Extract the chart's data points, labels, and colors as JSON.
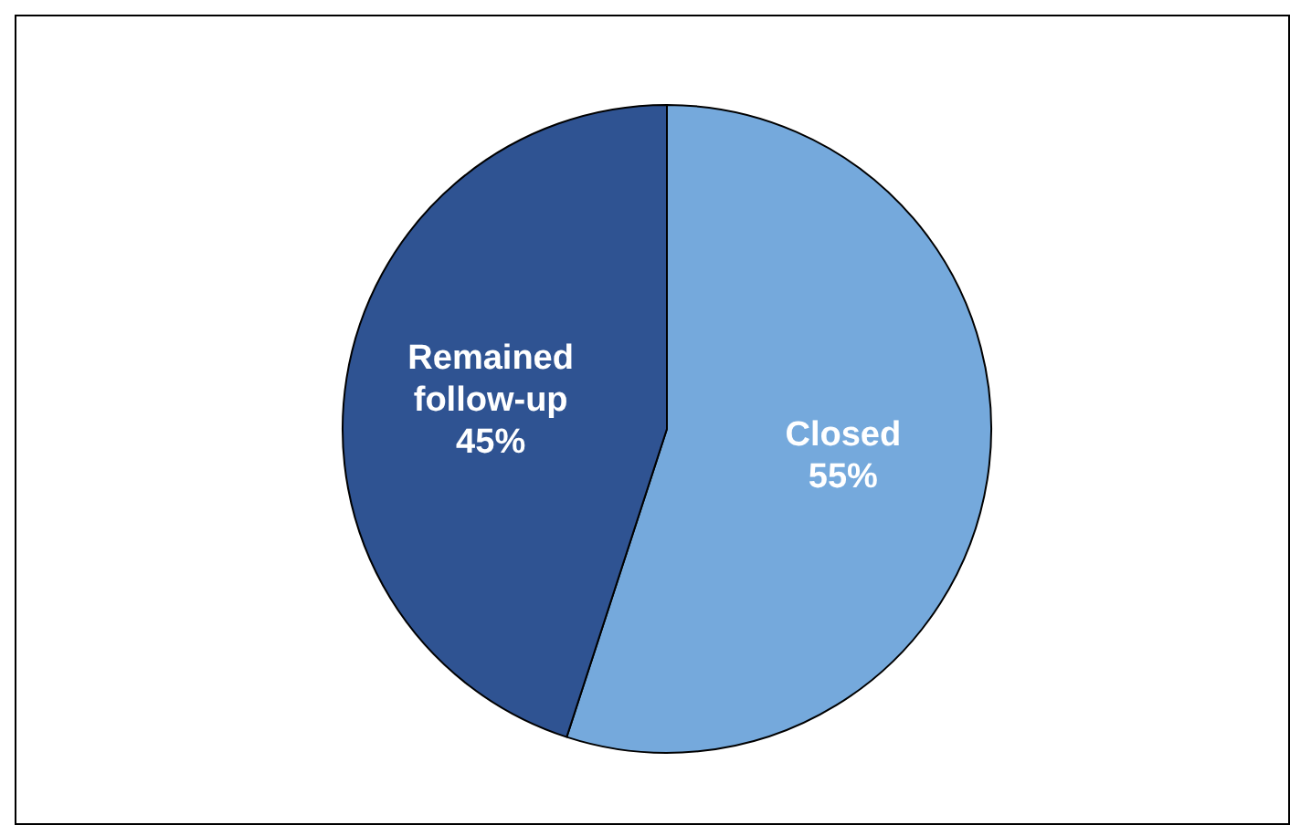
{
  "chart_data": {
    "type": "pie",
    "categories": [
      "Closed",
      "Remained follow-up"
    ],
    "values": [
      55,
      45
    ],
    "colors": [
      "#75a9dc",
      "#2f5392"
    ],
    "value_labels": [
      "55%",
      "45%"
    ],
    "legend": false
  }
}
